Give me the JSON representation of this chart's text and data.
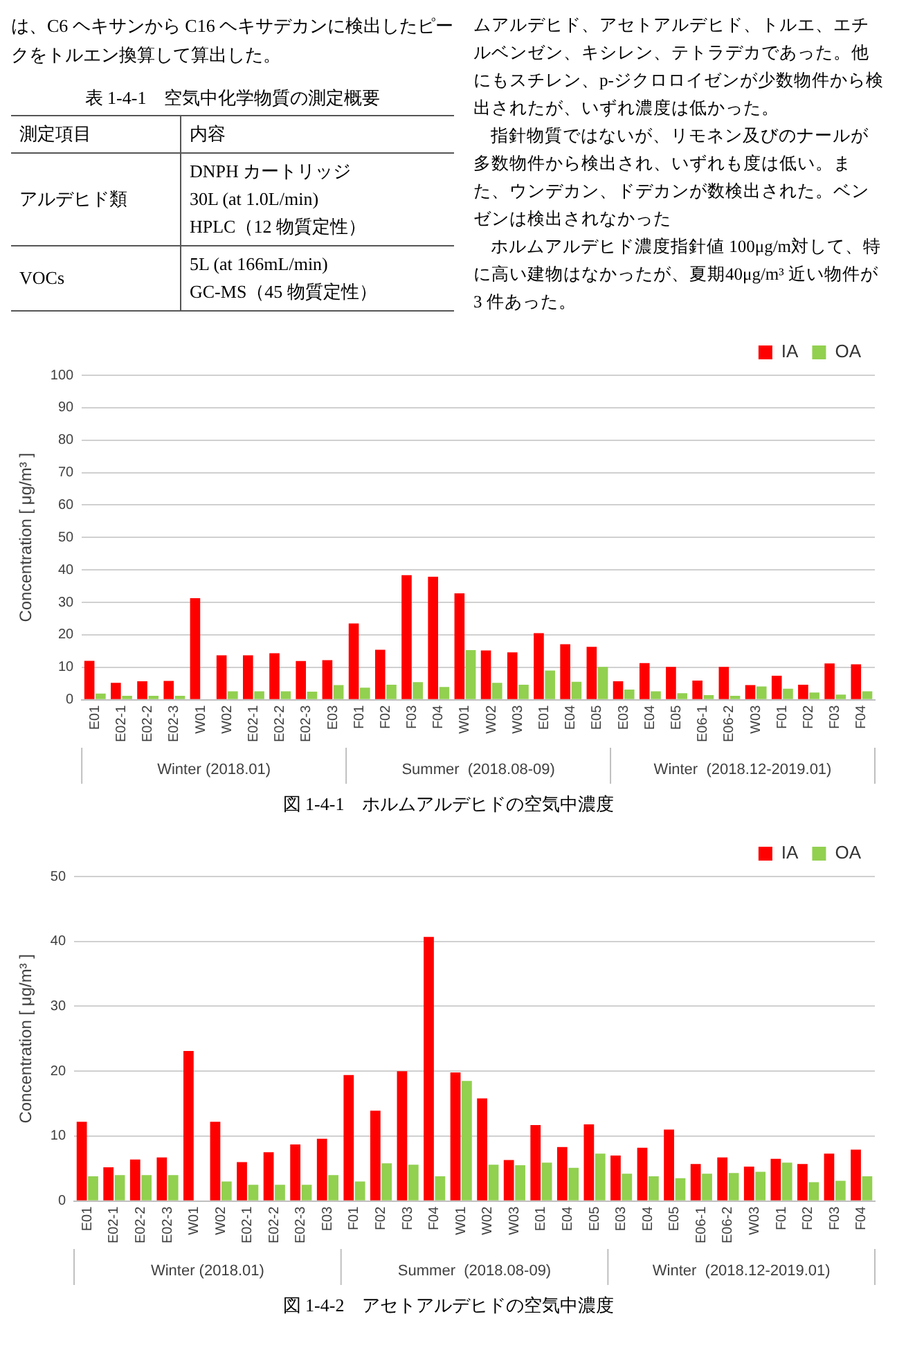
{
  "chart_data": [
    {
      "type": "other",
      "title": "表 1-4-1　空気中化学物質の測定概要",
      "annotations": [
        "は、C6 ヘキサンから C16 ヘキサデカンに検出したピークをトルエン換算して算出した。",
        "ムアルデヒド、アセトアルデヒド、トルエ、エチルベンゼン、キシレン、テトラデカであった。他にもスチレン、p-ジクロロイゼンが少数物件から検出されたが、いずれ濃度は低かった。",
        "指針物質ではないが、リモネン及びのナールが多数物件から検出され、いずれも度は低い。また、ウンデカン、ドデカンが数検出された。ベンゼンは検出されなかった",
        "ホルムアルデヒド濃度指針値 100μg/m対して、特に高い建物はなかったが、夏期40μg/m³ 近い物件が 3 件あった。",
        "測定項目",
        "内容",
        "アルデヒド類",
        "DNPH カートリッジ\n30L (at 1.0L/min)\nHPLC（12 物質定性）",
        "VOCs",
        "5L (at 166mL/min)\nGC-MS（45 物質定性）"
      ]
    },
    {
      "type": "bar",
      "title": "図 1-4-1　ホルムアルデヒドの空気中濃度",
      "ylabel": "Concentration [ μg/m³ ]",
      "categories": [
        "E01",
        "E02-1",
        "E02-2",
        "E02-3",
        "W01",
        "W02",
        "E02-1",
        "E02-2",
        "E02-3",
        "E03",
        "F01",
        "F02",
        "F03",
        "F04",
        "W01",
        "W02",
        "W03",
        "E01",
        "E04",
        "E05",
        "E03",
        "E04",
        "E05",
        "E06-1",
        "E06-2",
        "W03",
        "F01",
        "F02",
        "F03",
        "F04"
      ],
      "series": [
        {
          "name": "IA",
          "color": "#ff0000",
          "values": [
            12.0,
            5.2,
            5.7,
            5.8,
            31.3,
            13.7,
            13.7,
            14.3,
            11.9,
            12.2,
            23.5,
            15.4,
            38.4,
            37.9,
            32.8,
            15.2,
            14.6,
            20.5,
            17.1,
            16.3,
            5.7,
            11.3,
            10.1,
            5.9,
            10.1,
            4.5,
            7.4,
            4.6,
            11.2,
            10.9
          ]
        },
        {
          "name": "OA",
          "color": "#92d050",
          "values": [
            1.9,
            1.2,
            1.2,
            1.2,
            0,
            2.6,
            2.6,
            2.6,
            2.5,
            4.5,
            3.7,
            4.6,
            5.4,
            3.9,
            15.3,
            5.2,
            4.6,
            9.0,
            5.5,
            10.1,
            3.1,
            2.6,
            2.0,
            1.4,
            1.2,
            4.1,
            3.4,
            2.2,
            1.6,
            2.6
          ]
        }
      ],
      "ylim": [
        0,
        100
      ],
      "yticks": [
        0,
        10,
        20,
        30,
        40,
        50,
        60,
        70,
        80,
        90,
        100
      ],
      "grid": "y",
      "legend": "top right",
      "annotations": [
        "Winter (2018.01)",
        "Summer  (2018.08-09)",
        "Winter  (2018.12-2019.01)"
      ]
    },
    {
      "type": "bar",
      "title": "図 1-4-2　アセトアルデヒドの空気中濃度",
      "ylabel": "Concentration [ μg/m³ ]",
      "categories": [
        "E01",
        "E02-1",
        "E02-2",
        "E02-3",
        "W01",
        "W02",
        "E02-1",
        "E02-2",
        "E02-3",
        "E03",
        "F01",
        "F02",
        "F03",
        "F04",
        "W01",
        "W02",
        "W03",
        "E01",
        "E04",
        "E05",
        "E03",
        "E04",
        "E05",
        "E06-1",
        "E06-2",
        "W03",
        "F01",
        "F02",
        "F03",
        "F04"
      ],
      "series": [
        {
          "name": "IA",
          "color": "#ff0000",
          "values": [
            12.2,
            5.2,
            6.4,
            6.7,
            23.1,
            12.2,
            6.0,
            7.5,
            8.7,
            9.6,
            19.4,
            13.9,
            20.0,
            40.7,
            19.8,
            15.8,
            6.3,
            11.7,
            8.3,
            11.8,
            7.0,
            8.2,
            11.0,
            5.7,
            6.7,
            5.3,
            6.5,
            5.7,
            7.3,
            7.9
          ]
        },
        {
          "name": "OA",
          "color": "#92d050",
          "values": [
            3.8,
            4.0,
            4.0,
            4.0,
            0,
            3.0,
            2.5,
            2.5,
            2.5,
            4.0,
            3.0,
            5.8,
            5.6,
            3.8,
            18.5,
            5.6,
            5.5,
            5.9,
            5.1,
            7.3,
            4.2,
            3.8,
            3.5,
            4.2,
            4.3,
            4.5,
            5.9,
            2.9,
            3.1,
            3.8
          ]
        }
      ],
      "ylim": [
        0,
        50
      ],
      "yticks": [
        0,
        10,
        20,
        30,
        40,
        50
      ],
      "grid": "y",
      "legend": "top right",
      "annotations": [
        "Winter (2018.01)",
        "Summer  (2018.08-09)",
        "Winter  (2018.12-2019.01)"
      ]
    }
  ]
}
